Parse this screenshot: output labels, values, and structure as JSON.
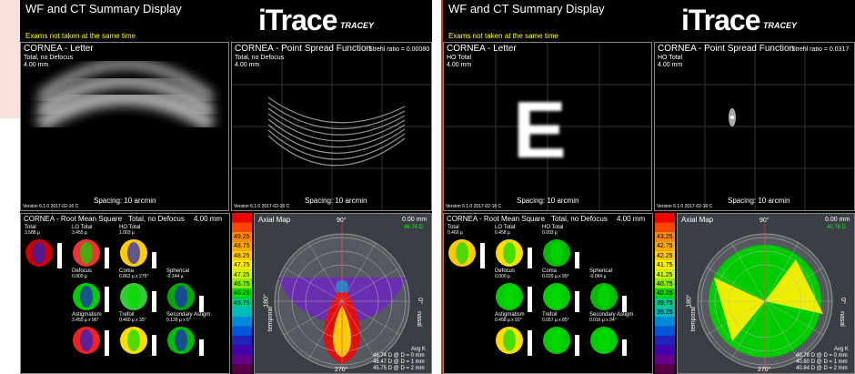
{
  "displays": [
    {
      "title": "WF and CT Summary Display",
      "logo": "iTrace",
      "brand": "TRACEY",
      "note": "Exams not taken at the same time",
      "letter": {
        "title": "CORNEA - Letter",
        "subtitle": "Total, no Defocus",
        "size": "4.00 mm",
        "spacing": "Spacing:  10 arcmin",
        "version": "Version 6.1.0 2017-02-16 C"
      },
      "psf": {
        "title": "CORNEA - Point Spread Function",
        "strehl": "Strehl ratio = 0.00080",
        "subtitle": "Total, no Defocus",
        "size": "4.00 mm",
        "spacing": "Spacing:  10 arcmin",
        "version": "Version 6.1.0 2017-02-16 C"
      },
      "rms": {
        "title": "CORNEA - Root Mean Square",
        "mode": "Total, no Defocus",
        "size": "4.00 mm",
        "tiles": [
          {
            "label": "Total",
            "value": "3.588 µ"
          },
          {
            "label": "LO Total",
            "value": "3.455 µ"
          },
          {
            "label": "HO Total",
            "value": "1.003 µ"
          },
          {
            "label": "Defocus",
            "value": "0.000 µ"
          },
          {
            "label": "Coma",
            "value": "0.862 µ x 275°"
          },
          {
            "label": "Spherical",
            "value": "-0.144 µ"
          },
          {
            "label": "Astigmatism",
            "value": "3.455 µ x 96°"
          },
          {
            "label": "Trefoil",
            "value": "0.460 µ x 35°"
          },
          {
            "label": "Secondary Astigm.",
            "value": "0.139 µ x 6°"
          }
        ]
      },
      "scale": [
        "49.25",
        "48.75",
        "48.25",
        "47.75",
        "47.25",
        "46.75",
        "46.25",
        "45.75"
      ],
      "axial": {
        "title": "Axial Map",
        "zone": "0.00 mm",
        "value": "46.74 D",
        "top": "90°",
        "left": "180°",
        "right": "0°",
        "bottom": "270°",
        "temporal": "temporal",
        "nasal": "nasal",
        "avg_title": "Avg K",
        "avg": [
          "46.74 D @ D = 0 mm",
          "46.47 D @ D = 1 mm",
          "45.75 D @ D = 2 mm"
        ]
      }
    },
    {
      "title": "WF and CT Summary Display",
      "logo": "iTrace",
      "brand": "TRACEY",
      "note": "Exams not taken at the same time",
      "letter": {
        "title": "CORNEA - Letter",
        "subtitle": "HO Total",
        "size": "4.00 mm",
        "glyph": "E",
        "spacing": "Spacing:  10 arcmin",
        "version": "Version 6.1.0 2017-02-16 C"
      },
      "psf": {
        "title": "CORNEA - Point Spread Function",
        "strehl": "Strehl ratio = 0.0317",
        "subtitle": "HO Total",
        "size": "4.00 mm",
        "spacing": "Spacing:  10 arcmin",
        "version": "Version 6.1.0 2017-02-16 C"
      },
      "rms": {
        "title": "CORNEA - Root Mean Square",
        "mode": "Total, no Defocus",
        "size": "4.00 mm",
        "tiles": [
          {
            "label": "Total",
            "value": "0.460 µ"
          },
          {
            "label": "LO Total",
            "value": "0.458 µ"
          },
          {
            "label": "HO Total",
            "value": "0.093 µ"
          },
          {
            "label": "Defocus",
            "value": "0.000 µ"
          },
          {
            "label": "Coma",
            "value": "0.029 µ x 99°"
          },
          {
            "label": "Spherical",
            "value": "-0.064 µ"
          },
          {
            "label": "Astigmatism",
            "value": "0.458 µ x 92°"
          },
          {
            "label": "Trefoil",
            "value": "0.057 µ x 85°"
          },
          {
            "label": "Secondary Astigm.",
            "value": "0.016 µ x 94°"
          }
        ]
      },
      "scale": [
        "43.25",
        "42.75",
        "42.25",
        "41.75",
        "41.25",
        "40.75",
        "40.25",
        "39.75",
        "39.25"
      ],
      "axial": {
        "title": "Axial Map",
        "zone": "0.00 mm",
        "value": "40.78 D",
        "top": "90°",
        "left": "180°",
        "right": "0°",
        "bottom": "270°",
        "temporal": "temporal",
        "nasal": "nasal",
        "avg_title": "Avg K",
        "avg": [
          "40.78 D @ D = 0 mm",
          "40.80 D @ D = 1 mm",
          "40.84 D @ D = 2 mm"
        ]
      }
    }
  ]
}
